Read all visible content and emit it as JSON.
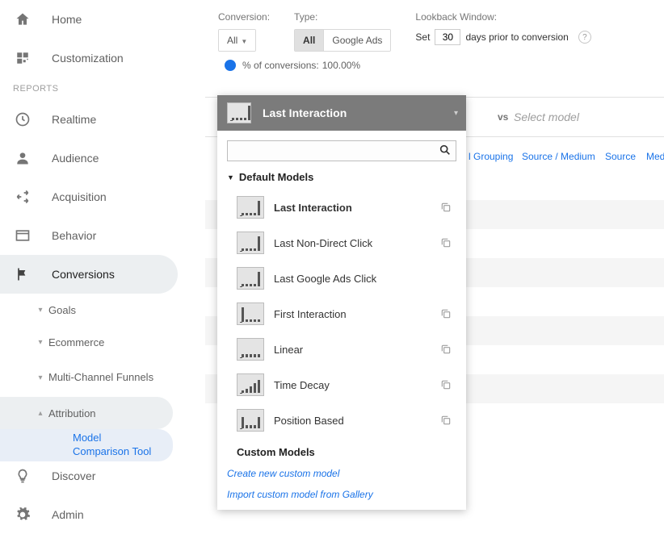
{
  "colors": {
    "accent": "#1a73e8",
    "muted": "#757575",
    "sidebar_active_bg": "#eceff1",
    "popover_header_bg": "#7b7b7b"
  },
  "sidebar": {
    "items": [
      {
        "label": "Home",
        "icon": "home"
      },
      {
        "label": "Customization",
        "icon": "dashboard"
      }
    ],
    "section_label": "REPORTS",
    "reports": [
      {
        "label": "Realtime",
        "icon": "clock"
      },
      {
        "label": "Audience",
        "icon": "person"
      },
      {
        "label": "Acquisition",
        "icon": "acq"
      },
      {
        "label": "Behavior",
        "icon": "behavior"
      },
      {
        "label": "Conversions",
        "icon": "flag",
        "active": true
      }
    ],
    "conversion_children": [
      {
        "label": "Goals",
        "expanded": false
      },
      {
        "label": "Ecommerce",
        "expanded": false
      },
      {
        "label": "Multi-Channel Funnels",
        "expanded": false
      },
      {
        "label": "Attribution",
        "expanded": true
      }
    ],
    "attribution_children": [
      {
        "label": "Model Comparison Tool",
        "selected": true
      }
    ],
    "footer": [
      {
        "label": "Discover",
        "icon": "bulb"
      },
      {
        "label": "Admin",
        "icon": "gear"
      }
    ]
  },
  "filters": {
    "conversion": {
      "label": "Conversion:",
      "value": "All"
    },
    "type": {
      "label": "Type:",
      "options": [
        "All",
        "Google Ads"
      ],
      "selected": 0
    },
    "lookback": {
      "label": "Lookback Window:",
      "prefix": "Set",
      "value": "30",
      "suffix": "days prior to conversion"
    },
    "conversions_pct": {
      "label": "% of conversions:",
      "value": "100.00%"
    }
  },
  "model_row": {
    "vs": "vs",
    "select_placeholder": "Select model"
  },
  "dimensions": {
    "items": [
      "l Grouping",
      "Source / Medium",
      "Source",
      "Mediu"
    ]
  },
  "popover": {
    "header": "Last Interaction",
    "search_placeholder": "",
    "group_default": "Default Models",
    "models": [
      {
        "label": "Last Interaction",
        "pattern": "last",
        "selected": true,
        "copy": true
      },
      {
        "label": "Last Non-Direct Click",
        "pattern": "last",
        "copy": true
      },
      {
        "label": "Last Google Ads Click",
        "pattern": "last",
        "copy": false
      },
      {
        "label": "First Interaction",
        "pattern": "first",
        "copy": true
      },
      {
        "label": "Linear",
        "pattern": "linear",
        "copy": true
      },
      {
        "label": "Time Decay",
        "pattern": "decay",
        "copy": true
      },
      {
        "label": "Position Based",
        "pattern": "position",
        "copy": true
      }
    ],
    "group_custom": "Custom Models",
    "links": [
      "Create new custom model",
      "Import custom model from Gallery"
    ]
  }
}
